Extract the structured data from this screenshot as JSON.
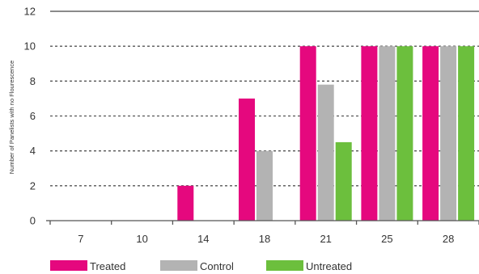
{
  "chart_data": {
    "type": "bar",
    "title": "",
    "xlabel": "",
    "ylabel": "Number of Panelists with no Flourescence",
    "categories": [
      "7",
      "10",
      "14",
      "18",
      "21",
      "25",
      "28"
    ],
    "ylim": [
      0,
      12
    ],
    "yticks": [
      0,
      2,
      4,
      6,
      8,
      10,
      12
    ],
    "grid": "dashed horizontal",
    "legend_position": "bottom",
    "series": [
      {
        "name": "Treated",
        "color": "#e5087e",
        "values": [
          0,
          0,
          2,
          7,
          10,
          10,
          10
        ]
      },
      {
        "name": "Control",
        "color": "#b3b3b3",
        "values": [
          0,
          0,
          0,
          4,
          7.8,
          10,
          10
        ]
      },
      {
        "name": "Untreated",
        "color": "#6cbf3d",
        "values": [
          0,
          0,
          0,
          0,
          4.5,
          10,
          10
        ]
      }
    ]
  }
}
